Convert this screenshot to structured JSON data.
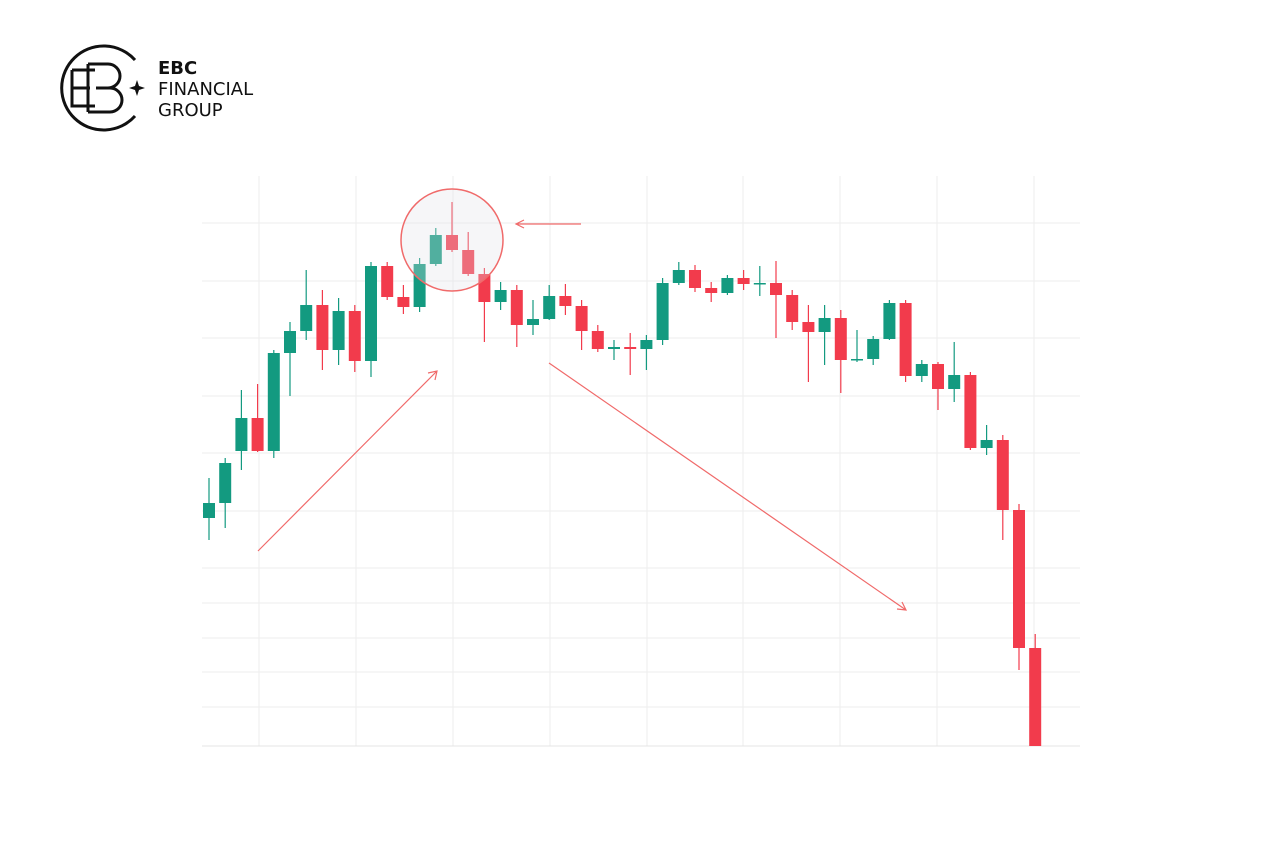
{
  "brand": {
    "name": "EBC",
    "line1": "FINANCIAL",
    "line2": "GROUP"
  },
  "chart_data": {
    "type": "candlestick",
    "ylim": [
      0,
      570
    ],
    "up_color": "#139a80",
    "down_color": "#f23b4c",
    "open": [
      228,
      243,
      295,
      328,
      295,
      393,
      415,
      441,
      396,
      435,
      385,
      480,
      449,
      439,
      482,
      511,
      496,
      472,
      444,
      456,
      421,
      427,
      450,
      440,
      415,
      397,
      399,
      397,
      406,
      463,
      476,
      458,
      453,
      468,
      462,
      463,
      451,
      424,
      414,
      428,
      386,
      387,
      407,
      443,
      370,
      382,
      357,
      371,
      298,
      306,
      236,
      98
    ],
    "high": [
      268,
      288,
      356,
      362,
      396,
      424,
      476,
      456,
      448,
      441,
      484,
      484,
      461,
      488,
      518,
      544,
      514,
      478,
      464,
      461,
      446,
      461,
      462,
      446,
      421,
      406,
      413,
      411,
      468,
      484,
      481,
      464,
      471,
      476,
      480,
      485,
      456,
      441,
      441,
      436,
      416,
      410,
      446,
      446,
      386,
      384,
      404,
      374,
      321,
      311,
      242,
      112
    ],
    "low": [
      206,
      218,
      276,
      294,
      288,
      350,
      406,
      376,
      381,
      374,
      369,
      446,
      432,
      434,
      480,
      494,
      470,
      404,
      436,
      399,
      411,
      426,
      431,
      396,
      394,
      386,
      371,
      376,
      401,
      461,
      454,
      444,
      451,
      456,
      450,
      408,
      416,
      364,
      381,
      353,
      384,
      381,
      406,
      364,
      364,
      336,
      344,
      296,
      291,
      206,
      76,
      0
    ],
    "close": [
      243,
      283,
      328,
      295,
      393,
      415,
      441,
      396,
      435,
      385,
      480,
      449,
      439,
      482,
      511,
      496,
      472,
      444,
      456,
      421,
      427,
      450,
      440,
      415,
      397,
      399,
      397,
      406,
      463,
      476,
      458,
      453,
      468,
      462,
      463,
      451,
      424,
      414,
      428,
      386,
      387,
      407,
      443,
      370,
      382,
      357,
      371,
      298,
      306,
      236,
      98,
      0
    ]
  }
}
